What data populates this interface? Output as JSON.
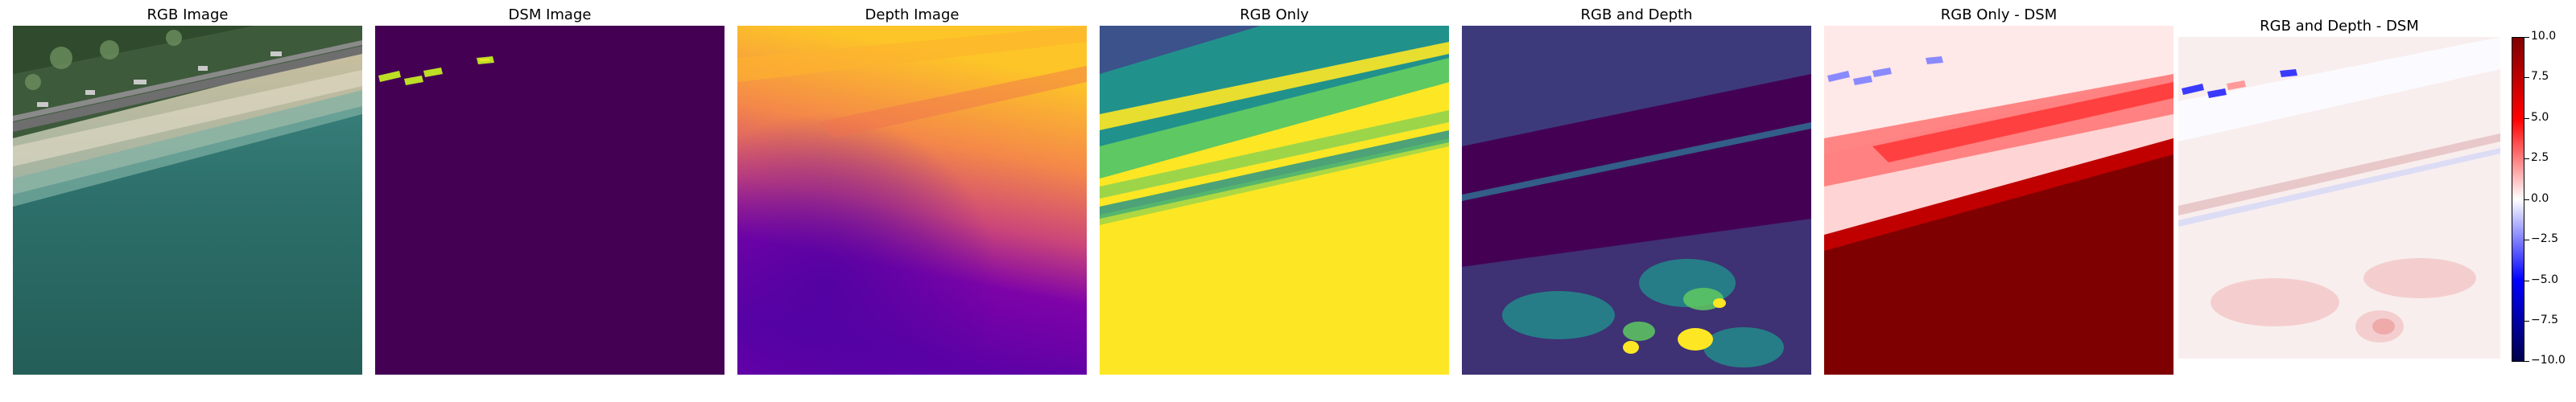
{
  "panels": [
    {
      "title": "RGB Image"
    },
    {
      "title": "DSM Image"
    },
    {
      "title": "Depth Image"
    },
    {
      "title": "RGB Only"
    },
    {
      "title": "RGB and Depth"
    },
    {
      "title": "RGB Only - DSM"
    },
    {
      "title": "RGB and Depth - DSM"
    }
  ],
  "colorbar": {
    "ticks": [
      "10.0",
      "7.5",
      "5.0",
      "2.5",
      "0.0",
      "−2.5",
      "−5.0",
      "−7.5",
      "−10.0"
    ],
    "tick_values": [
      10.0,
      7.5,
      5.0,
      2.5,
      0.0,
      -2.5,
      -5.0,
      -7.5,
      -10.0
    ],
    "range": [
      -10.0,
      10.0
    ],
    "colormap": "seismic",
    "colors": [
      "#00004c",
      "#0000ff",
      "#ffffff",
      "#ff0000",
      "#7f0000"
    ]
  },
  "colormaps": {
    "dsm": [
      "#440154",
      "#bddf26",
      "#fde725"
    ],
    "depth": [
      "#fdc527",
      "#f48849",
      "#cc4778",
      "#7e03a8",
      "#4c02a1"
    ],
    "prediction": [
      "#440154",
      "#3b528b",
      "#21918c",
      "#5ec962",
      "#fde725"
    ]
  }
}
